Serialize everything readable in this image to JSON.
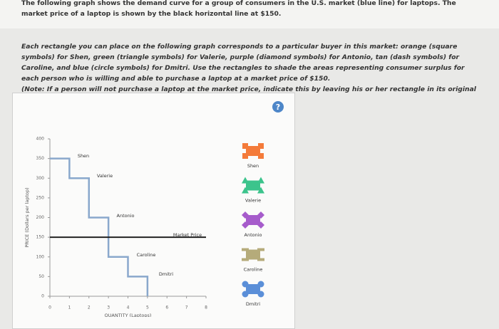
{
  "intro": "The following graph shows the demand curve for a group of consumers in the U.S. market (blue line) for laptops. The market price of a laptop is shown by the black horizontal line at $150.",
  "instructions": "Each rectangle you can place on the following graph corresponds to a particular buyer in this market: orange (square symbols) for Shen, green (triangle symbols) for Valerie, purple (diamond symbols) for Antonio, tan (dash symbols) for Caroline, and blue (circle symbols) for Dmitri. Use the rectangles to shade the areas representing consumer surplus for each person who is willing and able to purchase a laptop at a market price of $150.",
  "note_label": "(Note:",
  "note_start": "If a person will",
  "note_bold": "not",
  "note_end": "purchase a laptop at the market price, indicate this by leaving his or her rectangle in its original position on the palette.)",
  "help": "?",
  "graph": {
    "type": "step",
    "ylabel": "PRICE (Dollars per laptop)",
    "xlabel": "QUANTITY (Laptops)",
    "xlim": [
      0,
      8
    ],
    "xticks": [
      0,
      1,
      2,
      3,
      4,
      5,
      6,
      7,
      8
    ],
    "ylim": [
      0,
      400
    ],
    "yticks": [
      0,
      50,
      100,
      150,
      200,
      250,
      300,
      350,
      400
    ],
    "demand": {
      "color": "#8aa8cc",
      "x": [
        0,
        1,
        1,
        2,
        2,
        3,
        3,
        4,
        4,
        5,
        5
      ],
      "y": [
        350,
        350,
        300,
        300,
        200,
        200,
        100,
        100,
        50,
        50,
        0
      ]
    },
    "market_price": {
      "label": "Market Price",
      "value": 150
    },
    "buyer_labels": [
      "Shen",
      "Valerie",
      "Antonio",
      "Caroline",
      "Dmitri"
    ]
  },
  "palette": [
    {
      "name": "Shen",
      "color": "#f47b3a",
      "symbol": "square"
    },
    {
      "name": "Valerie",
      "color": "#3cc48c",
      "symbol": "triangle"
    },
    {
      "name": "Antonio",
      "color": "#a65ccb",
      "symbol": "diamond"
    },
    {
      "name": "Caroline",
      "color": "#b5ab7a",
      "symbol": "dash"
    },
    {
      "name": "Dmitri",
      "color": "#5b8fd8",
      "symbol": "circle"
    }
  ]
}
